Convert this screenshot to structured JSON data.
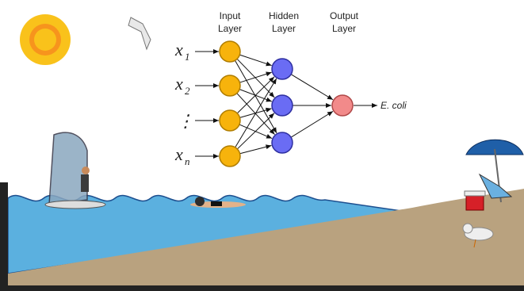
{
  "layers": [
    {
      "lines": [
        "Input",
        "Layer"
      ]
    },
    {
      "lines": [
        "Hidden",
        "Layer"
      ]
    },
    {
      "lines": [
        "Output",
        "Layer"
      ]
    }
  ],
  "inputs": [
    {
      "symbol": "x",
      "subscript": "1"
    },
    {
      "symbol": "x",
      "subscript": "2"
    },
    {
      "symbol": "x",
      "subscript": "n"
    }
  ],
  "ellipsis": "⋮",
  "output": "E. coli"
}
